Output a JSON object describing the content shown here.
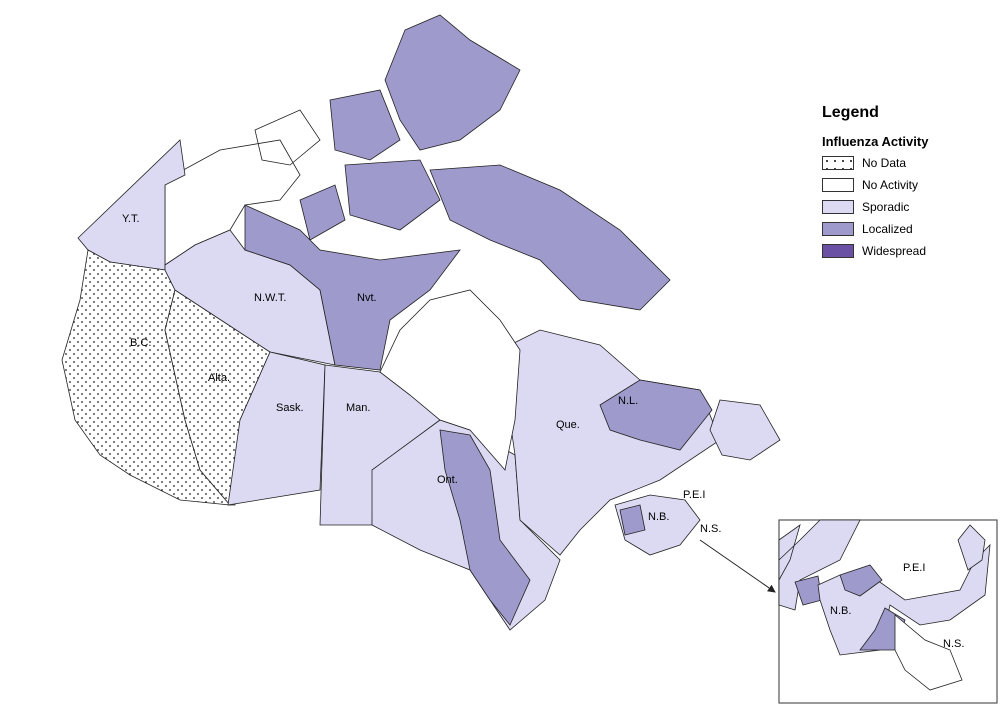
{
  "legend": {
    "title": "Legend",
    "subtitle": "Influenza Activity",
    "items": [
      {
        "label": "No Data",
        "color": "#ffffff",
        "pattern": "dots"
      },
      {
        "label": "No Activity",
        "color": "#ffffff"
      },
      {
        "label": "Sporadic",
        "color": "#dcdaf2"
      },
      {
        "label": "Localized",
        "color": "#9e9acb"
      },
      {
        "label": "Widespread",
        "color": "#6a51a3"
      }
    ]
  },
  "regions": [
    {
      "label": "Y.T.",
      "activity": "Sporadic"
    },
    {
      "label": "B.C.",
      "activity": "No Data"
    },
    {
      "label": "Alta.",
      "activity": "No Data"
    },
    {
      "label": "N.W.T.",
      "activity": "Sporadic"
    },
    {
      "label": "Nvt.",
      "activity": "Localized"
    },
    {
      "label": "Sask.",
      "activity": "Sporadic"
    },
    {
      "label": "Man.",
      "activity": "Sporadic"
    },
    {
      "label": "Ont.",
      "activity": "Sporadic"
    },
    {
      "label": "Que.",
      "activity": "Sporadic"
    },
    {
      "label": "N.L.",
      "activity": "Localized"
    },
    {
      "label": "N.B.",
      "activity": "Sporadic"
    },
    {
      "label": "P.E.I",
      "activity": "Sporadic"
    },
    {
      "label": "N.S.",
      "activity": "Sporadic"
    }
  ],
  "inset": {
    "labels": [
      "P.E.I",
      "N.B.",
      "N.S."
    ]
  }
}
